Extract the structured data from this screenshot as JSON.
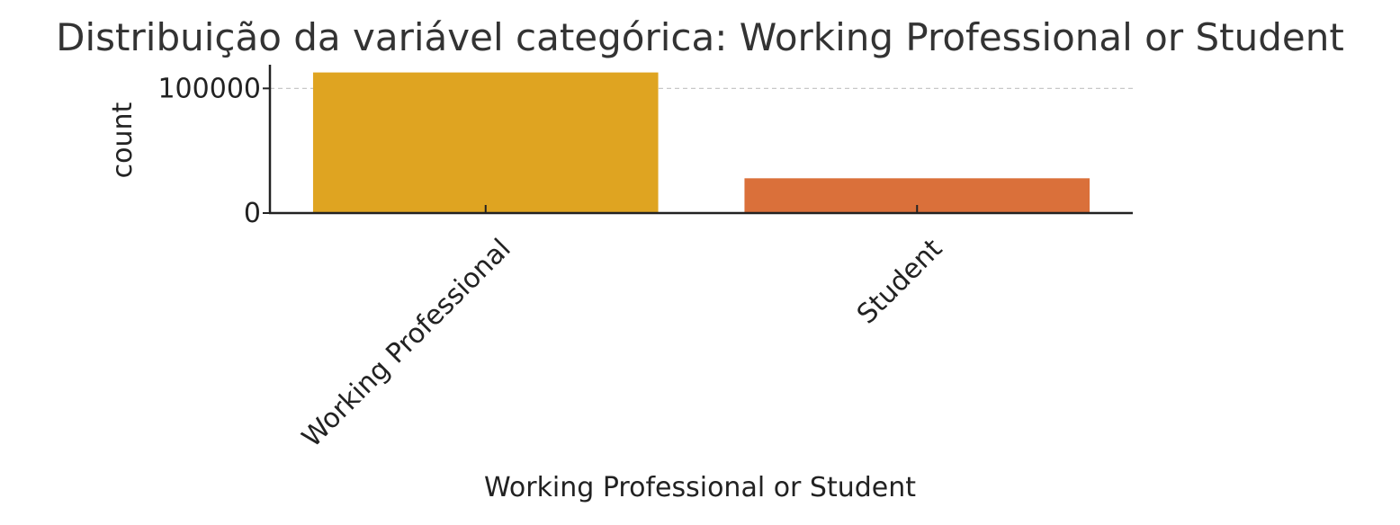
{
  "chart_data": {
    "type": "bar",
    "title": "Distribuição da variável categórica: Working Professional or Student",
    "xlabel": "Working Professional or Student",
    "ylabel": "count",
    "categories": [
      "Working Professional",
      "Student"
    ],
    "values": [
      112800,
      27900
    ],
    "colors": [
      "#dfa421",
      "#da703a"
    ],
    "ylim": [
      0,
      119000
    ],
    "yticks": [
      0,
      100000
    ],
    "grid": "horizontal dashed",
    "legend": "none"
  }
}
